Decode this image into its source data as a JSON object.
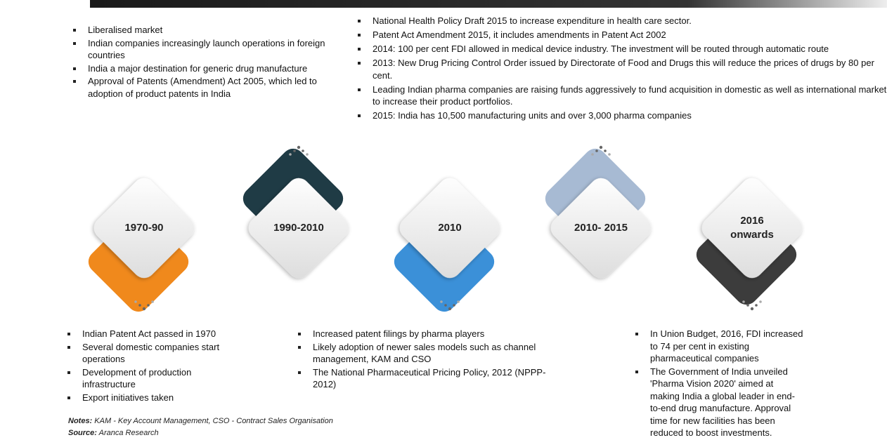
{
  "stages": [
    {
      "label": "1970-90",
      "points": [
        "Indian Patent Act passed in 1970",
        "Several domestic companies start operations",
        "Development of production infrastructure",
        "Export initiatives taken"
      ]
    },
    {
      "label": "1990-2010",
      "points": [
        "Liberalised market",
        "Indian companies increasingly launch operations in foreign countries",
        "India a major destination for generic drug manufacture",
        "Approval of Patents (Amendment) Act 2005, which led to adoption of product patents in India"
      ]
    },
    {
      "label": "2010",
      "points": [
        "Increased patent filings by pharma players",
        "Likely adoption of newer sales models such as channel management, KAM and CSO",
        "The National Pharmaceutical Pricing Policy, 2012 (NPPP-2012)"
      ]
    },
    {
      "label": "2010- 2015",
      "points": [
        "National Health Policy Draft 2015 to increase expenditure in health care sector.",
        "Patent Act Amendment 2015, it includes amendments in Patent Act 2002",
        "2014: 100 per cent FDI allowed in medical device industry. The investment will be routed through automatic route",
        "2013: New Drug Pricing Control Order issued by Directorate of Food and Drugs this will reduce the prices of drugs by 80 per cent.",
        "Leading Indian pharma companies are raising funds aggressively to fund acquisition in domestic as well as international market to increase their product portfolios.",
        "2015: India has 10,500 manufacturing units and over 3,000 pharma companies"
      ]
    },
    {
      "label": "2016 onwards",
      "points": [
        "In Union Budget, 2016, FDI increased to 74 per cent in existing pharmaceutical companies",
        "The Government of India unveiled 'Pharma Vision 2020' aimed at making India a global leader in end-to-end drug manufacture. Approval time for new facilities has been reduced to boost investments."
      ]
    }
  ],
  "notes_label": "Notes:",
  "notes": "KAM - Key Account Management, CSO - Contract Sales Organisation",
  "source_label": "Source:",
  "source": "Aranca Research"
}
